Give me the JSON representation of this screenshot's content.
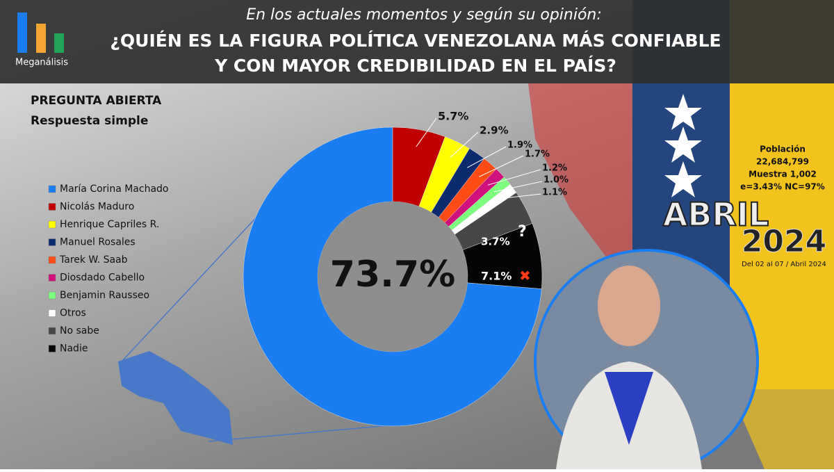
{
  "header": {
    "logo": "Meganálisis",
    "subtitle": "En los actuales momentos y según su opinión:",
    "title_line1": "¿QUIÉN ES LA FIGURA POLÍTICA VENEZOLANA MÁS CONFIABLE",
    "title_line2": "Y CON MAYOR CREDIBILIDAD EN EL PAÍS?"
  },
  "panel": {
    "question_type": "PREGUNTA  ABIERTA",
    "response_type": "Respuesta simple"
  },
  "info": {
    "population_label": "Población",
    "population": "22,684,799",
    "sample": "Muestra 1,002",
    "error": "e=3.43%  NC=97%",
    "month": "ABRIL",
    "year": "2024",
    "dates": "Del 02 al 07 / Abril 2024"
  },
  "chart_data": {
    "type": "pie",
    "donut": true,
    "categories": [
      "María Corina Machado",
      "Nicolás Maduro",
      "Henrique Capriles R.",
      "Manuel Rosales",
      "Tarek W. Saab",
      "Diosdado Cabello",
      "Benjamin Rausseo",
      "Otros",
      "No sabe",
      "Nadie"
    ],
    "values": [
      73.7,
      5.7,
      2.9,
      1.9,
      1.7,
      1.2,
      1.0,
      1.1,
      3.7,
      7.1
    ],
    "value_labels": [
      "73.7%",
      "5.7%",
      "2.9%",
      "1.9%",
      "1.7%",
      "1.2%",
      "1.0%",
      "1.1%",
      "3.7%",
      "7.1%"
    ],
    "colors": [
      "#1a7ef2",
      "#c00000",
      "#ffff00",
      "#0c2a6e",
      "#ff4b14",
      "#d0107c",
      "#7dff7d",
      "#ffffff",
      "#474747",
      "#050505"
    ],
    "annotations": [
      "?",
      "✖"
    ]
  }
}
